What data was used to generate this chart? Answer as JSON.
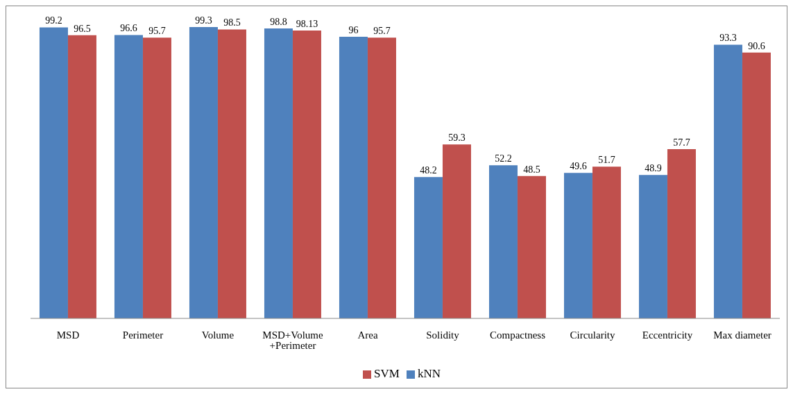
{
  "chart_data": {
    "type": "bar",
    "categories": [
      "MSD",
      "Perimeter",
      "Volume",
      "MSD+Volume +Perimeter",
      "Area",
      "Solidity",
      "Compactness",
      "Circularity",
      "Eccentricity",
      "Max diameter"
    ],
    "series": [
      {
        "name": "kNN",
        "color": "#4f81bd",
        "values": [
          99.2,
          96.6,
          99.3,
          98.8,
          96,
          48.2,
          52.2,
          49.6,
          48.9,
          93.3
        ]
      },
      {
        "name": "SVM",
        "color": "#c0504d",
        "values": [
          96.5,
          95.7,
          98.5,
          98.13,
          95.7,
          59.3,
          48.5,
          51.7,
          57.7,
          90.6
        ]
      }
    ],
    "data_labels": true,
    "legend": "bottom",
    "grid": false
  }
}
